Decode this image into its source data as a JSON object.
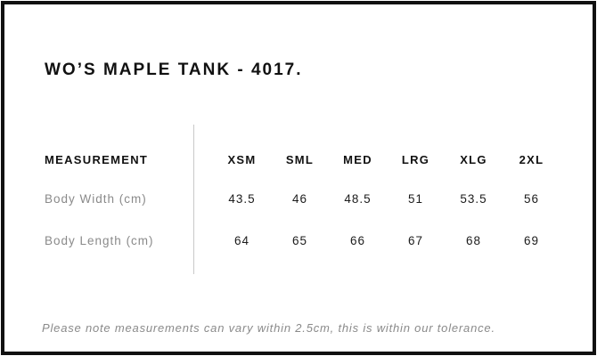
{
  "page": {
    "title": "WO’S MAPLE TANK - 4017.",
    "tolerance_note": "Please note measurements can vary within 2.5cm, this is within our tolerance."
  },
  "size_chart": {
    "measurement_header": "MEASUREMENT",
    "sizes": [
      "XSM",
      "SML",
      "MED",
      "LRG",
      "XLG",
      "2XL"
    ],
    "rows": [
      {
        "label": "Body Width (cm)",
        "values": [
          "43.5",
          "46",
          "48.5",
          "51",
          "53.5",
          "56"
        ]
      },
      {
        "label": "Body Length (cm)",
        "values": [
          "64",
          "65",
          "66",
          "67",
          "68",
          "69"
        ]
      }
    ]
  },
  "colors": {
    "frame_border": "#111111",
    "heading_text": "#111111",
    "muted_text": "#8a8a8a",
    "value_text": "#1c1c1c",
    "divider": "#c9c9c9",
    "background": "#ffffff"
  }
}
